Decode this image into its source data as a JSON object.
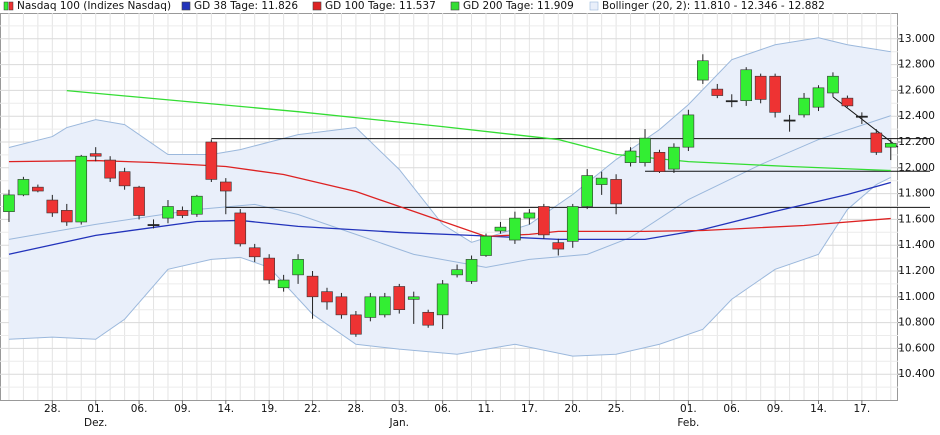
{
  "chart_data": {
    "type": "candlestick",
    "name": "Nasdaq 100 (Indizes Nasdaq)",
    "up_color": "#33ee33",
    "down_color": "#ee3333",
    "categories": [
      null,
      null,
      null,
      "28.",
      null,
      null,
      "01.",
      null,
      null,
      "06.",
      null,
      null,
      "09.",
      null,
      null,
      "14.",
      null,
      null,
      "19.",
      null,
      null,
      "22.",
      null,
      null,
      "28.",
      null,
      null,
      "03.",
      null,
      null,
      "06.",
      null,
      null,
      "11.",
      null,
      null,
      "17.",
      null,
      null,
      "20.",
      null,
      null,
      "25.",
      null,
      null,
      null,
      null,
      "01.",
      null,
      null,
      "06.",
      null,
      null,
      "09.",
      null,
      null,
      "14.",
      null,
      null,
      "17.",
      null,
      null
    ],
    "month_labels": [
      null,
      null,
      null,
      null,
      null,
      null,
      "Dez.",
      null,
      null,
      null,
      null,
      null,
      null,
      null,
      null,
      null,
      null,
      null,
      null,
      null,
      null,
      null,
      null,
      null,
      null,
      null,
      null,
      "Jan.",
      null,
      null,
      null,
      null,
      null,
      null,
      null,
      null,
      null,
      null,
      null,
      null,
      null,
      null,
      null,
      null,
      null,
      null,
      null,
      "Feb.",
      null,
      null,
      null,
      null,
      null,
      null,
      null,
      null,
      null,
      null,
      null,
      null,
      null,
      null
    ],
    "open": [
      11660,
      11790,
      11850,
      11750,
      11670,
      11580,
      12110,
      12060,
      11970,
      11850,
      11560,
      11610,
      11670,
      11640,
      12200,
      11890,
      11650,
      11380,
      11300,
      11070,
      11170,
      11160,
      11040,
      11000,
      10860,
      10840,
      10860,
      11080,
      10980,
      10880,
      10860,
      11170,
      11120,
      11320,
      11510,
      11440,
      11610,
      11700,
      11420,
      11430,
      11700,
      11870,
      11910,
      12040,
      12040,
      12120,
      11990,
      12160,
      12680,
      12610,
      12520,
      12520,
      12710,
      12710,
      12370,
      12410,
      12470,
      12580,
      12540,
      12400,
      12270,
      12160
    ],
    "high": [
      11830,
      11930,
      11870,
      11790,
      11720,
      12100,
      12160,
      12090,
      12000,
      11860,
      11600,
      11750,
      11700,
      11790,
      12220,
      11920,
      11680,
      11410,
      11330,
      11170,
      11330,
      11200,
      11070,
      11030,
      10890,
      11030,
      11030,
      11100,
      11040,
      10900,
      11130,
      11250,
      11320,
      11490,
      11580,
      11660,
      11680,
      11720,
      11450,
      11720,
      11990,
      11970,
      11950,
      12160,
      12300,
      12140,
      12190,
      12450,
      12880,
      12650,
      12570,
      12780,
      12730,
      12730,
      12410,
      12580,
      12640,
      12740,
      12560,
      12430,
      12300,
      12220
    ],
    "low": [
      11580,
      11780,
      11810,
      11620,
      11550,
      11560,
      12050,
      11890,
      11830,
      11600,
      11530,
      11570,
      11610,
      11620,
      11890,
      11640,
      11390,
      11270,
      11100,
      11040,
      11100,
      10830,
      10900,
      10830,
      10690,
      10810,
      10840,
      10870,
      10790,
      10760,
      10750,
      11150,
      11100,
      11310,
      11490,
      11410,
      11560,
      11450,
      11320,
      11380,
      11680,
      11790,
      11640,
      12010,
      12010,
      11960,
      11960,
      12130,
      12650,
      12540,
      12470,
      12480,
      12500,
      12390,
      12280,
      12390,
      12440,
      12550,
      12470,
      12340,
      12100,
      12060
    ],
    "close": [
      11790,
      11910,
      11820,
      11650,
      11580,
      12090,
      12090,
      11920,
      11860,
      11630,
      11560,
      11700,
      11630,
      11780,
      11910,
      11820,
      11410,
      11310,
      11130,
      11130,
      11290,
      11000,
      10960,
      10860,
      10710,
      11000,
      11000,
      10900,
      11000,
      10780,
      11100,
      11210,
      11290,
      11470,
      11540,
      11610,
      11650,
      11480,
      11370,
      11700,
      11940,
      11920,
      11720,
      12130,
      12230,
      11970,
      12160,
      12410,
      12830,
      12560,
      12520,
      12760,
      12530,
      12430,
      12370,
      12540,
      12620,
      12710,
      12480,
      12400,
      12120,
      12190
    ],
    "lines": [
      {
        "name": "GD 38 Tage: 11.826",
        "color": "#2233bb",
        "x": [
          0,
          6,
          13,
          16,
          20,
          27,
          32,
          38,
          44,
          48,
          53,
          58,
          61
        ],
        "values": [
          11330,
          11476,
          11584,
          11592,
          11546,
          11499,
          11476,
          11445,
          11445,
          11522,
          11662,
          11793,
          11886
        ]
      },
      {
        "name": "GD 100 Tage: 11.537",
        "color": "#dd2222",
        "x": [
          0,
          6,
          10,
          15,
          19,
          24,
          28,
          33,
          36,
          38,
          44,
          48,
          55,
          61
        ],
        "values": [
          12048,
          12056,
          12041,
          12010,
          11948,
          11816,
          11662,
          11468,
          11484,
          11507,
          11507,
          11514,
          11553,
          11607
        ]
      },
      {
        "name": "GD 200 Tage: 11.909",
        "color": "#33dd33",
        "x": [
          4,
          20,
          30,
          38,
          42,
          47,
          54,
          61
        ],
        "values": [
          12598,
          12435,
          12319,
          12219,
          12103,
          12048,
          12010,
          11979
        ]
      }
    ],
    "bollinger": {
      "name": "Bollinger (20, 2): 11.810 - 12.346 - 12.882",
      "color": "#9bb8dc",
      "fill": "#e9effa",
      "upper": {
        "x": [
          0,
          3,
          4,
          6,
          8,
          11,
          14,
          16,
          20,
          24,
          27,
          30,
          32,
          36,
          39,
          42,
          45,
          47,
          50,
          53,
          56,
          58,
          61
        ],
        "values": [
          12157,
          12242,
          12312,
          12373,
          12335,
          12103,
          12103,
          12141,
          12257,
          12312,
          11987,
          11561,
          11422,
          11561,
          11793,
          12064,
          12296,
          12490,
          12838,
          12954,
          13008,
          12954,
          12900
        ]
      },
      "middle": {
        "x": [
          0,
          6,
          13,
          17,
          20,
          24,
          28,
          33,
          36,
          40,
          43,
          47,
          52,
          56,
          61
        ],
        "values": [
          11445,
          11561,
          11677,
          11716,
          11638,
          11484,
          11329,
          11228,
          11290,
          11329,
          11460,
          11754,
          12025,
          12219,
          12404
        ]
      },
      "lower": {
        "x": [
          0,
          3,
          6,
          8,
          11,
          14,
          16,
          18,
          21,
          24,
          27,
          31,
          35,
          39,
          42,
          45,
          48,
          50,
          53,
          56,
          58,
          60,
          61
        ],
        "values": [
          10671,
          10687,
          10671,
          10826,
          11213,
          11290,
          11306,
          11228,
          10865,
          10632,
          10594,
          10555,
          10632,
          10540,
          10555,
          10632,
          10748,
          10981,
          11213,
          11329,
          11677,
          11870,
          11925
        ]
      }
    },
    "hlines": [
      {
        "value": 12226,
        "start": 14
      },
      {
        "value": 11973,
        "start": 44
      },
      {
        "value": 11693,
        "start": 15
      }
    ],
    "trend_line": {
      "x": [
        57,
        61.5
      ],
      "values": [
        12550,
        12160
      ]
    },
    "xlim": [
      -0.62,
      61.5
    ],
    "ylim": [
      10200,
      13200
    ],
    "yticks": [
      {
        "value": 10400,
        "label": "10.400"
      },
      {
        "value": 10600,
        "label": "10.600"
      },
      {
        "value": 10800,
        "label": "10.800"
      },
      {
        "value": 11000,
        "label": "11.000"
      },
      {
        "value": 11200,
        "label": "11.200"
      },
      {
        "value": 11400,
        "label": "11.400"
      },
      {
        "value": 11600,
        "label": "11.600"
      },
      {
        "value": 11800,
        "label": "11.800"
      },
      {
        "value": 12000,
        "label": "12.000"
      },
      {
        "value": 12200,
        "label": "12.200"
      },
      {
        "value": 12400,
        "label": "12.400"
      },
      {
        "value": 12600,
        "label": "12.600"
      },
      {
        "value": 12800,
        "label": "12.800"
      },
      {
        "value": 13000,
        "label": "13.000"
      }
    ],
    "yminor": [
      10300,
      10500,
      10700,
      10900,
      11100,
      11300,
      11500,
      11700,
      11900,
      12100,
      12300,
      12500,
      12700,
      12900,
      13100
    ],
    "grid": true
  }
}
